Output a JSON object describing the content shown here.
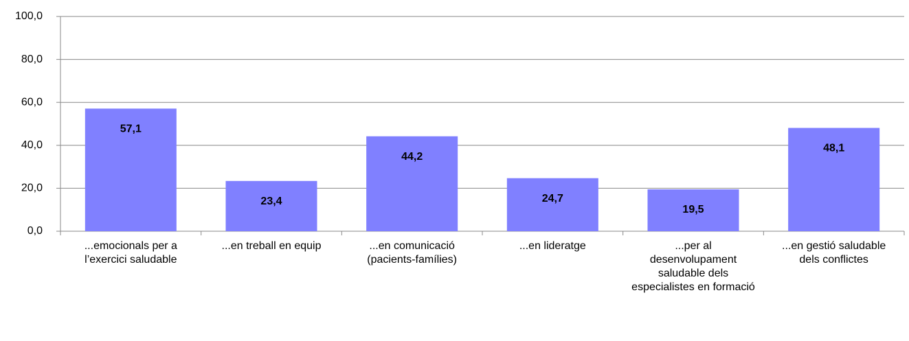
{
  "chart_data": {
    "type": "bar",
    "categories": [
      "...emocionals per a l’exercici saludable",
      "...en treball en equip",
      "...en comunicació (pacients-famílies)",
      "...en lideratge",
      "...per al desenvolupament saludable dels especialistes en formació",
      "...en gestió saludable dels conflictes"
    ],
    "values": [
      57.1,
      23.4,
      44.2,
      24.7,
      19.5,
      48.1
    ],
    "value_labels": [
      "57,1",
      "23,4",
      "44,2",
      "24,7",
      "19,5",
      "48,1"
    ],
    "color": "#8080ff",
    "ylim": [
      0,
      100
    ],
    "yticks": [
      {
        "value": 0,
        "label": "0,0"
      },
      {
        "value": 20,
        "label": "20,0"
      },
      {
        "value": 40,
        "label": "40,0"
      },
      {
        "value": 60,
        "label": "60,0"
      },
      {
        "value": 80,
        "label": "80,0"
      },
      {
        "value": 100,
        "label": "100,0"
      }
    ],
    "grid": true
  }
}
